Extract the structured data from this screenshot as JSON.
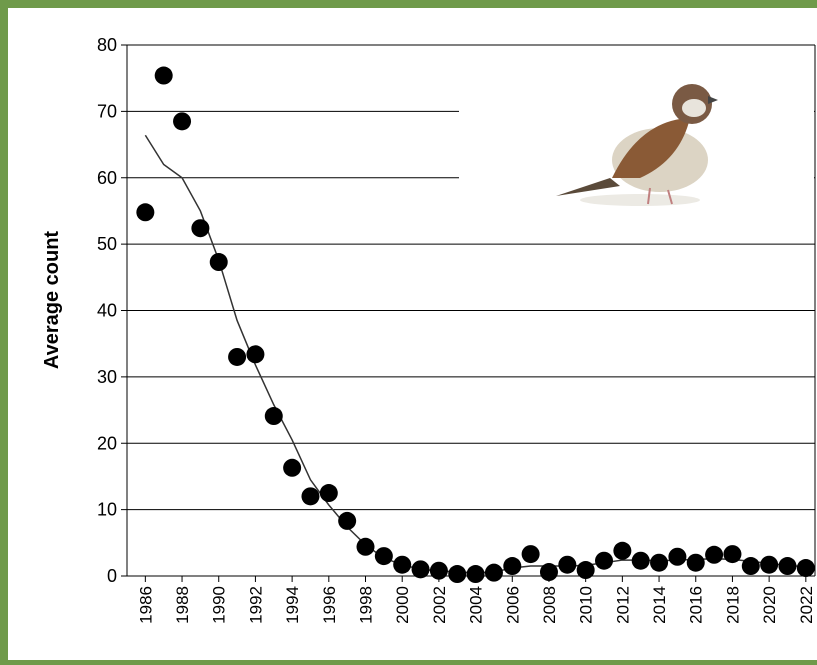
{
  "chart_data": {
    "type": "scatter",
    "y_label": "Average count",
    "x": [
      1986,
      1987,
      1988,
      1989,
      1990,
      1991,
      1992,
      1993,
      1994,
      1995,
      1996,
      1997,
      1998,
      1999,
      2000,
      2001,
      2002,
      2003,
      2004,
      2005,
      2006,
      2007,
      2008,
      2009,
      2010,
      2011,
      2012,
      2013,
      2014,
      2015,
      2016,
      2017,
      2018,
      2019,
      2020,
      2021,
      2022
    ],
    "series": [
      {
        "style": "points",
        "color": "#000000",
        "values": [
          54.8,
          75.4,
          68.5,
          52.4,
          47.3,
          33,
          33.4,
          24.1,
          16.3,
          12,
          12.5,
          8.3,
          4.4,
          3,
          1.7,
          1,
          0.8,
          0.3,
          0.3,
          0.5,
          1.5,
          3.3,
          0.6,
          1.7,
          0.9,
          2.3,
          3.8,
          2.3,
          2,
          2.9,
          2,
          3.2,
          3.3,
          1.5,
          1.7,
          1.5,
          1.2
        ]
      },
      {
        "style": "line",
        "color": "#333333",
        "values": [
          66.4,
          62,
          60,
          55,
          47.6,
          38.5,
          31.8,
          25.8,
          20.5,
          14.5,
          10.7,
          7.4,
          4.7,
          2.7,
          1.7,
          1,
          0.8,
          0.6,
          0.5,
          0.6,
          1.2,
          1.5,
          1.5,
          1.5,
          1.6,
          2,
          2.4,
          2.4,
          2.3,
          2.4,
          2.5,
          2.6,
          2.5,
          2.2,
          1.9,
          1.6,
          1.4
        ]
      }
    ],
    "xlim": [
      1985,
      2022.5
    ],
    "ylim": [
      0,
      80
    ],
    "xticks": [
      1986,
      1988,
      1990,
      1992,
      1994,
      1996,
      1998,
      2000,
      2002,
      2004,
      2006,
      2008,
      2010,
      2012,
      2014,
      2016,
      2018,
      2020,
      2022
    ],
    "yticks": [
      0,
      10,
      20,
      30,
      40,
      50,
      60,
      70,
      80
    ],
    "grid": true
  }
}
